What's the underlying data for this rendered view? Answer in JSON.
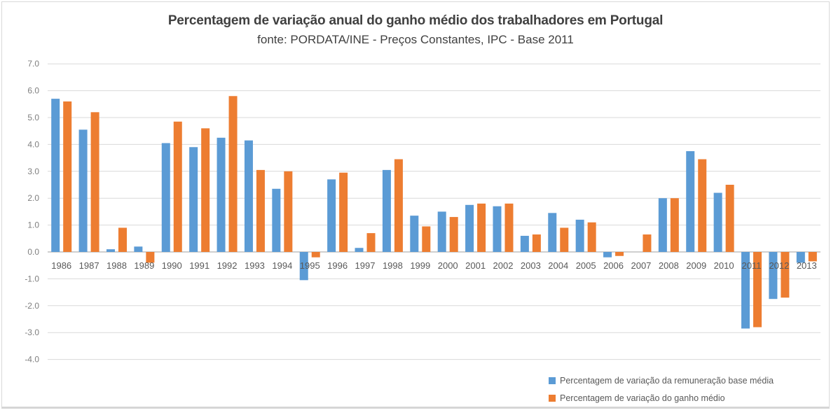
{
  "chart_data": {
    "type": "bar",
    "title": "Percentagem de variação anual do ganho médio dos trabalhadores em Portugal",
    "subtitle": "fonte: PORDATA/INE - Preços Constantes, IPC - Base 2011",
    "categories": [
      "1986",
      "1987",
      "1988",
      "1989",
      "1990",
      "1991",
      "1992",
      "1993",
      "1994",
      "1995",
      "1996",
      "1997",
      "1998",
      "1999",
      "2000",
      "2001",
      "2002",
      "2003",
      "2004",
      "2005",
      "2006",
      "2007",
      "2008",
      "2009",
      "2010",
      "2011",
      "2012",
      "2013"
    ],
    "series": [
      {
        "name": "Percentagem de variação da remuneração base média",
        "color": "#5B9BD5",
        "values": [
          5.7,
          4.55,
          0.1,
          0.2,
          4.05,
          3.9,
          4.25,
          4.15,
          2.35,
          -1.05,
          2.7,
          0.15,
          3.05,
          1.35,
          1.5,
          1.75,
          1.7,
          0.6,
          1.45,
          1.2,
          -0.2,
          0,
          2.0,
          3.75,
          2.2,
          -2.85,
          -1.75,
          -0.4
        ]
      },
      {
        "name": "Percentagem de variação do ganho médio",
        "color": "#ED7D31",
        "values": [
          5.6,
          5.2,
          0.9,
          -0.4,
          4.85,
          4.6,
          5.8,
          3.05,
          3.0,
          -0.2,
          2.95,
          0.7,
          3.45,
          0.95,
          1.3,
          1.8,
          1.8,
          0.65,
          0.9,
          1.1,
          -0.15,
          0.65,
          2.0,
          3.45,
          2.5,
          -2.8,
          -1.7,
          -0.35
        ]
      }
    ],
    "xlabel": "",
    "ylabel": "",
    "ylim": [
      -4.0,
      7.0
    ],
    "ytick_labels": [
      "7.0",
      "6.0",
      "5.0",
      "4.0",
      "3.0",
      "2.0",
      "1.0",
      "0.0",
      "-1.0",
      "-2.0",
      "-3.0",
      "-4.0"
    ],
    "grid": true,
    "legend_position": "bottom-right"
  },
  "style": {
    "gridline_color": "#d9d9d9",
    "zero_axis_color": "#bfbfbf",
    "ytick_color": "#7f7f7f",
    "xtick_color": "#595959",
    "title_color": "#404040"
  }
}
